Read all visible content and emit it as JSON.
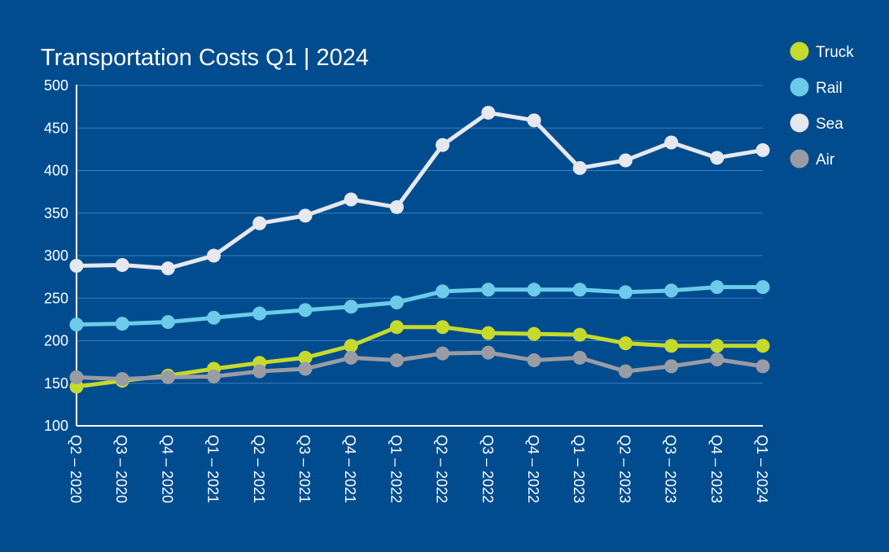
{
  "chart_data": {
    "type": "line",
    "title": "Transportation Costs Q1 | 2024",
    "xlabel": "",
    "ylabel": "",
    "ylim": [
      100,
      500
    ],
    "yticks": [
      100,
      150,
      200,
      250,
      300,
      350,
      400,
      450,
      500
    ],
    "grid": true,
    "legend_position": "top-right",
    "categories": [
      "Q2 – 2020",
      "Q3 – 2020",
      "Q4 – 2020",
      "Q1 – 2021",
      "Q2 – 2021",
      "Q3 – 2021",
      "Q4 – 2021",
      "Q1 – 2022",
      "Q2 – 2022",
      "Q3 – 2022",
      "Q4 – 2022",
      "Q1 – 2023",
      "Q2 – 2023",
      "Q3 – 2023",
      "Q4 – 2023",
      "Q1 – 2024"
    ],
    "series": [
      {
        "name": "Truck",
        "color": "#c5da2c",
        "values": [
          146,
          153,
          159,
          167,
          174,
          180,
          194,
          216,
          216,
          209,
          208,
          207,
          197,
          194,
          194,
          194
        ]
      },
      {
        "name": "Rail",
        "color": "#6ccbe9",
        "values": [
          219,
          220,
          222,
          227,
          232,
          236,
          240,
          245,
          258,
          260,
          260,
          260,
          257,
          259,
          263,
          263
        ]
      },
      {
        "name": "Sea",
        "color": "#e6e8ee",
        "values": [
          288,
          289,
          285,
          300,
          338,
          347,
          366,
          357,
          430,
          468,
          459,
          403,
          412,
          433,
          415,
          424
        ]
      },
      {
        "name": "Air",
        "color": "#9a9ca4",
        "values": [
          157,
          155,
          157,
          158,
          164,
          167,
          180,
          177,
          185,
          186,
          177,
          180,
          164,
          170,
          178,
          170
        ]
      }
    ]
  }
}
